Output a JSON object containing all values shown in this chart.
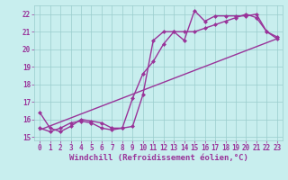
{
  "title": "",
  "xlabel": "Windchill (Refroidissement éolien,°C)",
  "ylabel": "",
  "xlim": [
    -0.5,
    23.5
  ],
  "ylim": [
    14.8,
    22.5
  ],
  "xticks": [
    0,
    1,
    2,
    3,
    4,
    5,
    6,
    7,
    8,
    9,
    10,
    11,
    12,
    13,
    14,
    15,
    16,
    17,
    18,
    19,
    20,
    21,
    22,
    23
  ],
  "yticks": [
    15,
    16,
    17,
    18,
    19,
    20,
    21,
    22
  ],
  "background_color": "#c8eeee",
  "grid_color": "#99cccc",
  "line_color": "#993399",
  "curve1_x": [
    0,
    1,
    2,
    3,
    4,
    5,
    6,
    7,
    8,
    9,
    10,
    11,
    12,
    13,
    14,
    15,
    16,
    17,
    18,
    19,
    20,
    21,
    22,
    23
  ],
  "curve1_y": [
    16.4,
    15.5,
    15.3,
    15.6,
    16.0,
    15.9,
    15.8,
    15.5,
    15.5,
    15.6,
    17.4,
    20.5,
    21.0,
    21.0,
    20.5,
    22.2,
    21.6,
    21.9,
    21.9,
    21.9,
    21.9,
    22.0,
    21.0,
    20.6
  ],
  "curve2_x": [
    0,
    1,
    2,
    3,
    4,
    5,
    6,
    7,
    8,
    9,
    10,
    11,
    12,
    13,
    14,
    15,
    16,
    17,
    18,
    19,
    20,
    21,
    22,
    23
  ],
  "curve2_y": [
    15.5,
    15.3,
    15.5,
    15.8,
    15.9,
    15.8,
    15.5,
    15.4,
    15.5,
    17.2,
    18.6,
    19.3,
    20.3,
    21.0,
    21.0,
    21.0,
    21.2,
    21.4,
    21.6,
    21.8,
    22.0,
    21.8,
    21.0,
    20.7
  ],
  "curve3_x": [
    0,
    23
  ],
  "curve3_y": [
    15.4,
    20.6
  ],
  "marker": "D",
  "marker_size": 2.5,
  "line_width": 1.0,
  "font_size": 6.5,
  "tick_font_size": 5.5,
  "xlabel_fontfamily": "monospace",
  "xlabel_fontweight": "bold"
}
